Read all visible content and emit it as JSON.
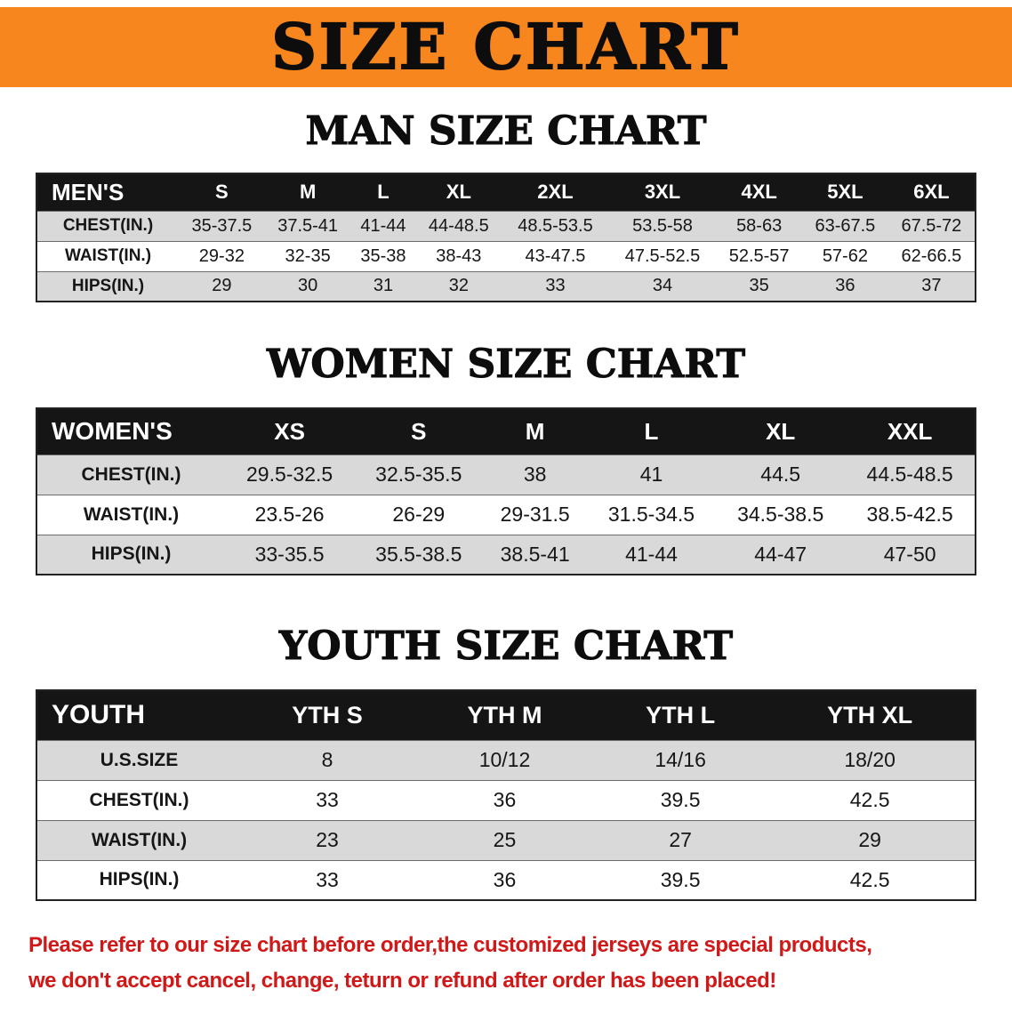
{
  "banner": {
    "title": "SIZE CHART",
    "bg_color": "#F6861D"
  },
  "sections": [
    {
      "id": "men",
      "heading": "MAN SIZE CHART",
      "table": {
        "header": [
          "MEN'S",
          "S",
          "M",
          "L",
          "XL",
          "2XL",
          "3XL",
          "4XL",
          "5XL",
          "6XL"
        ],
        "rows": [
          {
            "label": "CHEST(IN.)",
            "values": [
              "35-37.5",
              "37.5-41",
              "41-44",
              "44-48.5",
              "48.5-53.5",
              "53.5-58",
              "58-63",
              "63-67.5",
              "67.5-72"
            ]
          },
          {
            "label": "WAIST(IN.)",
            "values": [
              "29-32",
              "32-35",
              "35-38",
              "38-43",
              "43-47.5",
              "47.5-52.5",
              "52.5-57",
              "57-62",
              "62-66.5"
            ]
          },
          {
            "label": "HIPS(IN.)",
            "values": [
              "29",
              "30",
              "31",
              "32",
              "33",
              "34",
              "35",
              "36",
              "37"
            ]
          }
        ]
      }
    },
    {
      "id": "women",
      "heading": "WOMEN SIZE CHART",
      "table": {
        "header": [
          "WOMEN'S",
          "XS",
          "S",
          "M",
          "L",
          "XL",
          "XXL"
        ],
        "rows": [
          {
            "label": "CHEST(IN.)",
            "values": [
              "29.5-32.5",
              "32.5-35.5",
              "38",
              "41",
              "44.5",
              "44.5-48.5"
            ]
          },
          {
            "label": "WAIST(IN.)",
            "values": [
              "23.5-26",
              "26-29",
              "29-31.5",
              "31.5-34.5",
              "34.5-38.5",
              "38.5-42.5"
            ]
          },
          {
            "label": "HIPS(IN.)",
            "values": [
              "33-35.5",
              "35.5-38.5",
              "38.5-41",
              "41-44",
              "44-47",
              "47-50"
            ]
          }
        ]
      }
    },
    {
      "id": "youth",
      "heading": "YOUTH SIZE CHART",
      "table": {
        "header": [
          "YOUTH",
          "YTH S",
          "YTH M",
          "YTH L",
          "YTH XL"
        ],
        "rows": [
          {
            "label": "U.S.SIZE",
            "values": [
              "8",
              "10/12",
              "14/16",
              "18/20"
            ]
          },
          {
            "label": "CHEST(IN.)",
            "values": [
              "33",
              "36",
              "39.5",
              "42.5"
            ]
          },
          {
            "label": "WAIST(IN.)",
            "values": [
              "23",
              "25",
              "27",
              "29"
            ]
          },
          {
            "label": "HIPS(IN.)",
            "values": [
              "33",
              "36",
              "39.5",
              "42.5"
            ]
          }
        ]
      }
    }
  ],
  "footer": {
    "lines": [
      "Please refer to our size chart before order,the customized jerseys are special products,",
      "we don't accept cancel, change, teturn or refund after order has been placed!"
    ],
    "text_color": "#d01818"
  }
}
